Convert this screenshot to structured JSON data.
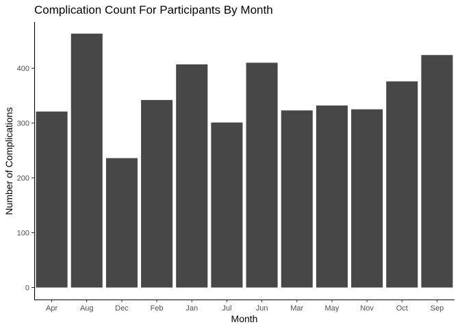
{
  "chart_data": {
    "type": "bar",
    "title": "Complication Count For Participants By Month",
    "xlabel": "Month",
    "ylabel": "Number of Complications",
    "categories": [
      "Apr",
      "Aug",
      "Dec",
      "Feb",
      "Jan",
      "Jul",
      "Jun",
      "Mar",
      "May",
      "Nov",
      "Oct",
      "Sep"
    ],
    "values": [
      321,
      463,
      236,
      342,
      407,
      301,
      410,
      323,
      332,
      325,
      376,
      424
    ],
    "ylim": [
      0,
      480
    ],
    "yticks": [
      0,
      100,
      200,
      300,
      400
    ],
    "grid": false,
    "legend": "none",
    "colors": {
      "bar": "#474747",
      "axis": "#000000",
      "tick_label": "#4d4d4d"
    }
  }
}
